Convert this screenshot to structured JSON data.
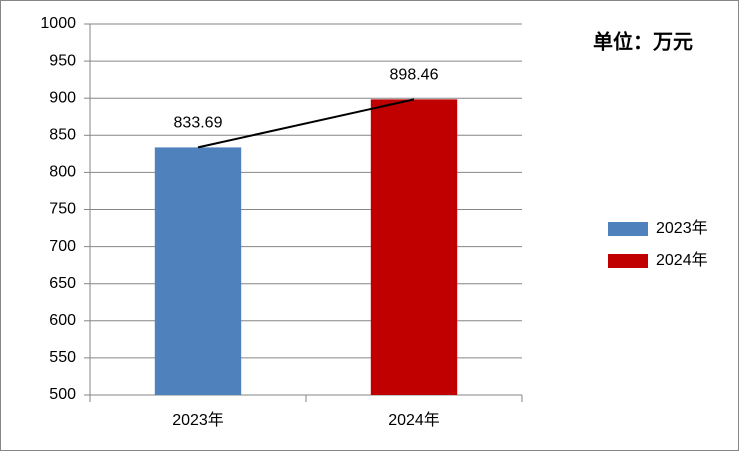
{
  "chart_data": {
    "type": "bar",
    "annotation": "单位：万元",
    "categories": [
      "2023年",
      "2024年"
    ],
    "series": [
      {
        "name": "2023年",
        "color": "#4f81bd",
        "values": [
          833.69,
          null
        ]
      },
      {
        "name": "2024年",
        "color": "#c00000",
        "values": [
          null,
          898.46
        ]
      }
    ],
    "ylim": [
      500,
      1000
    ],
    "yticks": [
      500,
      550,
      600,
      650,
      700,
      750,
      800,
      850,
      900,
      950,
      1000
    ],
    "grid": true,
    "legend": "right",
    "trend_line": true
  }
}
